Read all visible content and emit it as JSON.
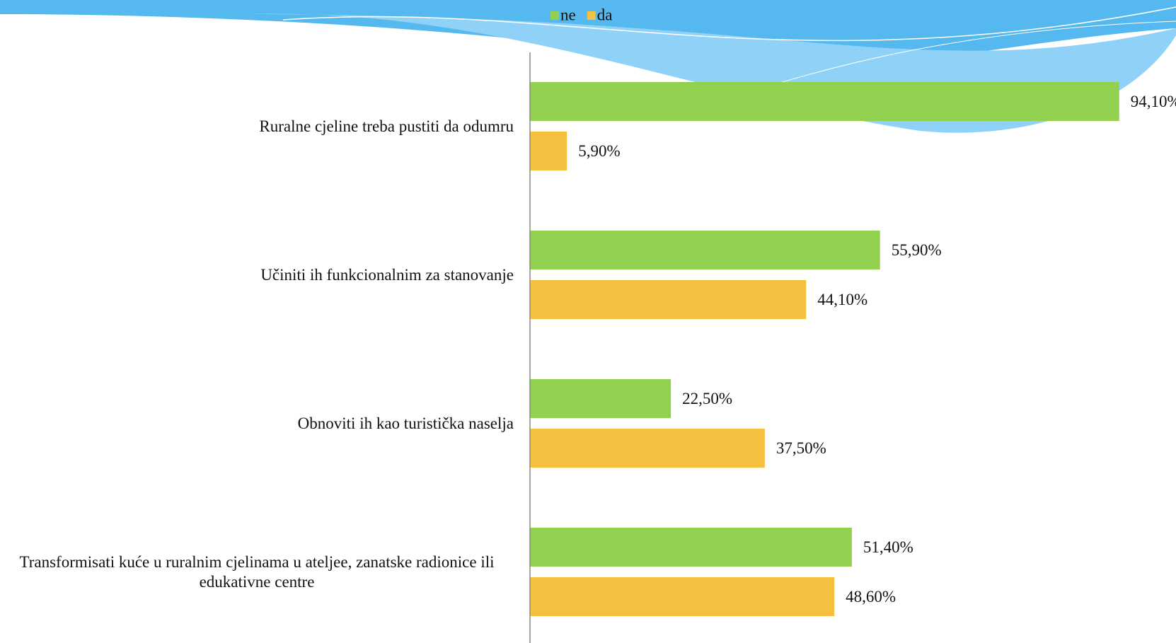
{
  "chart_data": {
    "type": "bar",
    "orientation": "horizontal",
    "categories": [
      "Ruralne cjeline treba pustiti da odumru",
      "Učiniti ih funkcionalnim za stanovanje",
      "Obnoviti ih kao turistička naselja",
      "Transformisati kuće u ruralnim cjelinama u ateljee, zanatske radionice ili edukativne centre"
    ],
    "series": [
      {
        "name": "ne",
        "color": "#92d050",
        "values": [
          94.1,
          55.9,
          22.5,
          51.4
        ],
        "value_labels": [
          "94,10%",
          "55,90%",
          "22,50%",
          "51,40%"
        ]
      },
      {
        "name": "da",
        "color": "#f5c040",
        "values": [
          5.9,
          44.1,
          37.5,
          48.6
        ],
        "value_labels": [
          "5,90%",
          "44,10%",
          "37,50%",
          "48,60%"
        ]
      }
    ],
    "xlim": [
      0,
      100
    ],
    "legend": "top"
  }
}
